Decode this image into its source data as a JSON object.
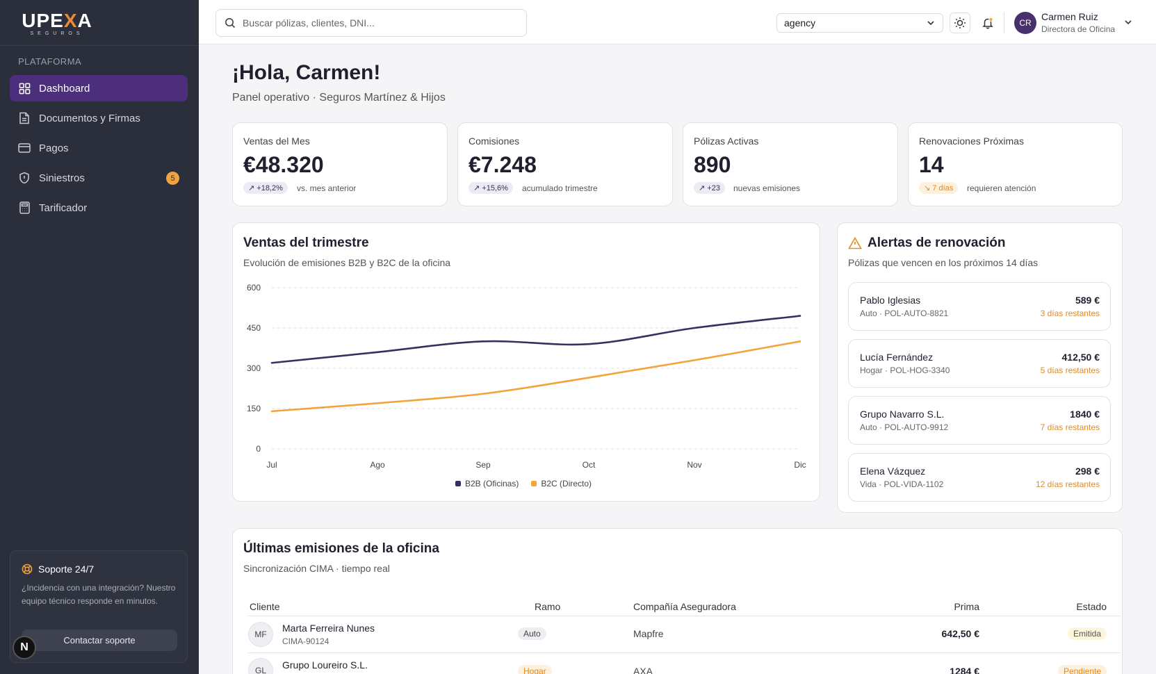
{
  "sidebar": {
    "logo_main_a": "UPE",
    "logo_main_x": "X",
    "logo_main_b": "A",
    "logo_sub": "SEGUROS",
    "section": "PLATAFORMA",
    "items": [
      {
        "label": "Dashboard",
        "icon": "dashboard-icon"
      },
      {
        "label": "Documentos y Firmas",
        "icon": "document-icon"
      },
      {
        "label": "Pagos",
        "icon": "card-icon"
      },
      {
        "label": "Siniestros",
        "icon": "shield-icon",
        "badge": "5"
      },
      {
        "label": "Tarificador",
        "icon": "calculator-icon"
      }
    ],
    "support": {
      "title": "Soporte 24/7",
      "text": "¿Incidencia con una integración? Nuestro equipo técnico responde en minutos.",
      "button": "Contactar soporte"
    },
    "n_badge": "N"
  },
  "header": {
    "search_placeholder": "Buscar pólizas, clientes, DNI...",
    "select_value": "agency",
    "user": {
      "initials": "CR",
      "name": "Carmen Ruiz",
      "role": "Directora de Oficina"
    }
  },
  "main": {
    "greeting": "¡Hola, Carmen!",
    "subtitle": "Panel operativo · Seguros Martínez & Hijos",
    "kpis": [
      {
        "label": "Ventas del Mes",
        "value": "€48.320",
        "chip": "↗ +18,2%",
        "note": "vs. mes anterior"
      },
      {
        "label": "Comisiones",
        "value": "€7.248",
        "chip": "↗ +15,6%",
        "note": "acumulado trimestre"
      },
      {
        "label": "Pólizas Activas",
        "value": "890",
        "chip": "↗ +23",
        "note": "nuevas emisiones"
      },
      {
        "label": "Renovaciones Próximas",
        "value": "14",
        "chip": "↘ 7 días",
        "note": "requieren atención"
      }
    ],
    "sales_chart": {
      "title": "Ventas del trimestre",
      "subtitle": "Evolución de emisiones B2B y B2C de la oficina"
    },
    "alerts": {
      "title": "Alertas de renovación",
      "subtitle": "Pólizas que vencen en los próximos 14 días",
      "items": [
        {
          "name": "Pablo Iglesias",
          "meta": "Auto · POL-AUTO-8821",
          "amount": "589 €",
          "days": "3 días restantes"
        },
        {
          "name": "Lucía Fernández",
          "meta": "Hogar · POL-HOG-3340",
          "amount": "412,50 €",
          "days": "5 días restantes"
        },
        {
          "name": "Grupo Navarro S.L.",
          "meta": "Auto · POL-AUTO-9912",
          "amount": "1840 €",
          "days": "7 días restantes"
        },
        {
          "name": "Elena Vázquez",
          "meta": "Vida · POL-VIDA-1102",
          "amount": "298 €",
          "days": "12 días restantes"
        }
      ]
    },
    "emissions": {
      "title": "Últimas emisiones de la oficina",
      "subtitle": "Sincronización CIMA · tiempo real",
      "columns": [
        "Cliente",
        "Ramo",
        "Compañía Aseguradora",
        "Prima",
        "Estado"
      ],
      "rows": [
        {
          "initials": "MF",
          "name": "Marta Ferreira Nunes",
          "code": "CIMA-90124",
          "ramo": "Auto",
          "company": "Mapfre",
          "prima": "642,50 €",
          "status": "Emitida"
        },
        {
          "initials": "GL",
          "name": "Grupo Loureiro S.L.",
          "code": "",
          "ramo": "Hogar",
          "company": "AXA",
          "prima": "1284 €",
          "status": "Pendiente"
        }
      ]
    }
  },
  "colors": {
    "accent": "#4c2e7d",
    "b2b": "#3d2d5e",
    "b2c": "#f2a33a",
    "warning": "#e38a22"
  },
  "chart_data": {
    "type": "line",
    "title": "Ventas del trimestre",
    "subtitle": "Evolución de emisiones B2B y B2C de la oficina",
    "x": [
      "Jul",
      "Ago",
      "Sep",
      "Oct",
      "Nov",
      "Dic"
    ],
    "ylim": [
      0,
      600
    ],
    "yticks": [
      0,
      150,
      300,
      450,
      600
    ],
    "grid": true,
    "legend": "bottom",
    "series": [
      {
        "name": "B2B (Oficinas)",
        "color": "#3d2d5e",
        "values": [
          320,
          360,
          400,
          390,
          450,
          495
        ]
      },
      {
        "name": "B2C (Directo)",
        "color": "#f2a33a",
        "values": [
          140,
          170,
          205,
          265,
          330,
          400
        ]
      }
    ]
  }
}
